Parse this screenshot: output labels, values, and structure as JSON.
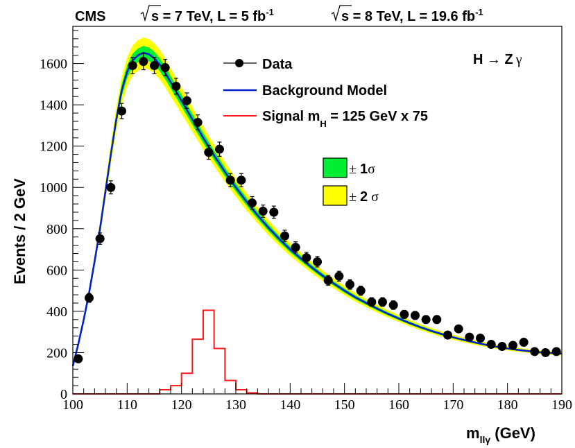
{
  "chart_data": {
    "type": "scatter",
    "header": {
      "experiment": "CMS",
      "lumi_7": {
        "energy": "s = 7 TeV, L = 5 fb",
        "exp": "-1"
      },
      "lumi_8": {
        "energy": "s = 8 TeV, L = 19.6 fb",
        "exp": "-1"
      }
    },
    "channel": {
      "main": "H → Z",
      "gamma": "γ"
    },
    "xlabel": {
      "main": "m",
      "sub": "llγ",
      "unit": " (GeV)"
    },
    "ylabel": "Events / 2 GeV",
    "xlim": [
      100,
      190
    ],
    "ylim": [
      0,
      1780
    ],
    "xticks": [
      "100",
      "110",
      "120",
      "130",
      "140",
      "150",
      "160",
      "170",
      "180",
      "190"
    ],
    "yticks": [
      "0",
      "200",
      "400",
      "600",
      "800",
      "1000",
      "1200",
      "1400",
      "1600"
    ],
    "legend": {
      "data": "Data",
      "background": "Background Model",
      "signal": {
        "main": "Signal m",
        "sub": "H",
        "rest": " = 125 GeV x 75"
      },
      "band1": {
        "pm": "± ",
        "n": "1",
        "sigma": "σ"
      },
      "band2": {
        "pm": "± ",
        "n": "2",
        "sigma": " σ"
      }
    },
    "colors": {
      "data": "#000000",
      "background": "#0022cc",
      "signal": "#ff1a1a",
      "band1": "#00ee33",
      "band2": "#ffff00"
    },
    "data_points": {
      "x": [
        101,
        103,
        105,
        107,
        109,
        111,
        113,
        115,
        117,
        119,
        121,
        123,
        125,
        127,
        129,
        131,
        133,
        135,
        137,
        139,
        141,
        143,
        145,
        147,
        149,
        151,
        153,
        155,
        157,
        159,
        161,
        163,
        165,
        167,
        169,
        171,
        173,
        175,
        177,
        179,
        181,
        183,
        185,
        187,
        189
      ],
      "y": [
        170,
        465,
        752,
        1000,
        1370,
        1590,
        1610,
        1590,
        1580,
        1490,
        1420,
        1315,
        1170,
        1185,
        1035,
        1035,
        925,
        885,
        880,
        765,
        710,
        660,
        640,
        550,
        570,
        530,
        500,
        445,
        445,
        430,
        385,
        380,
        360,
        360,
        285,
        315,
        275,
        270,
        240,
        230,
        235,
        250,
        205,
        200,
        205
      ]
    },
    "background_model": {
      "x": [
        100,
        101,
        102,
        103,
        104,
        105,
        106,
        107,
        108,
        109,
        110,
        111,
        112,
        113,
        114,
        115,
        116,
        117,
        118,
        119,
        120,
        122,
        124,
        126,
        128,
        130,
        132,
        134,
        136,
        138,
        140,
        142,
        144,
        146,
        148,
        150,
        152,
        154,
        156,
        158,
        160,
        162,
        164,
        166,
        168,
        170,
        172,
        174,
        176,
        178,
        180,
        182,
        184,
        186,
        188,
        190
      ],
      "y": [
        135,
        240,
        360,
        490,
        640,
        800,
        980,
        1160,
        1330,
        1470,
        1560,
        1615,
        1640,
        1652,
        1645,
        1625,
        1595,
        1555,
        1510,
        1465,
        1420,
        1330,
        1240,
        1155,
        1075,
        1000,
        930,
        865,
        805,
        750,
        700,
        655,
        612,
        572,
        535,
        500,
        468,
        440,
        413,
        388,
        365,
        343,
        323,
        305,
        289,
        274,
        261,
        249,
        238,
        228,
        220,
        213,
        207,
        202,
        198,
        195
      ],
      "band1_width": 0.02,
      "band2_width": 0.045
    },
    "signal": {
      "bin_edges": [
        116,
        118,
        120,
        122,
        124,
        126,
        128,
        130,
        132,
        134
      ],
      "values": [
        20,
        40,
        100,
        265,
        405,
        220,
        65,
        20,
        5
      ]
    }
  }
}
